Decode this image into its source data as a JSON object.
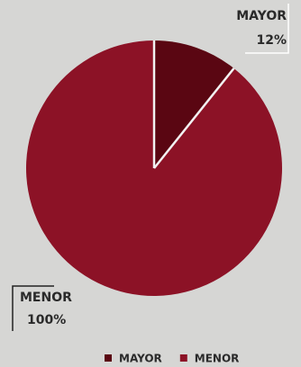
{
  "chart_data": {
    "type": "pie",
    "categories": [
      "MAYOR",
      "MENOR"
    ],
    "values": [
      12,
      100
    ],
    "value_labels": [
      "12%",
      "100%"
    ],
    "colors": [
      "#5a0612",
      "#8c1226"
    ]
  }
}
